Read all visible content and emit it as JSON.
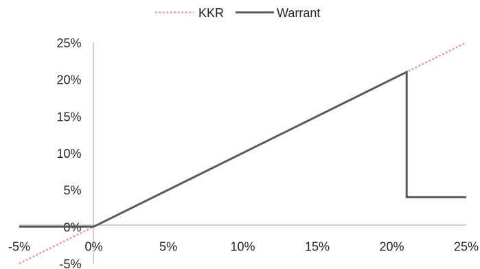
{
  "chart_data": {
    "type": "line",
    "title": "",
    "xlabel": "",
    "ylabel": "",
    "xlim": [
      -0.05,
      0.25
    ],
    "ylim": [
      -0.05,
      0.25
    ],
    "x_ticks": [
      "-5%",
      "0%",
      "5%",
      "10%",
      "15%",
      "20%",
      "25%"
    ],
    "x_tick_values": [
      -0.05,
      0,
      0.05,
      0.1,
      0.15,
      0.2,
      0.25
    ],
    "y_ticks": [
      "-5%",
      "0%",
      "5%",
      "10%",
      "15%",
      "20%",
      "25%"
    ],
    "y_tick_values": [
      -0.05,
      0,
      0.05,
      0.1,
      0.15,
      0.2,
      0.25
    ],
    "grid": false,
    "legend_position": "top-center",
    "series": [
      {
        "name": "KKR",
        "style": "dotted",
        "color": "#f08a94",
        "points": [
          [
            -0.05,
            -0.05
          ],
          [
            0.25,
            0.25
          ]
        ]
      },
      {
        "name": "Warrant",
        "style": "solid",
        "color": "#595959",
        "points": [
          [
            -0.05,
            0
          ],
          [
            0,
            0
          ],
          [
            0.21,
            0.21
          ],
          [
            0.21,
            0.04
          ],
          [
            0.25,
            0.04
          ]
        ]
      }
    ]
  }
}
